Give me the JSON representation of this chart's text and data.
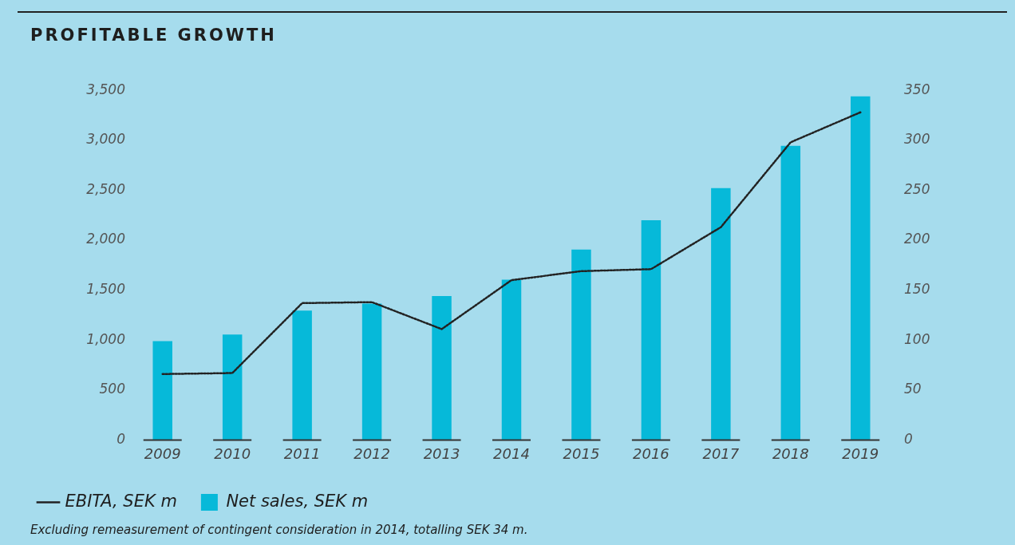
{
  "chart_data": {
    "type": "bar",
    "title": "PROFITABLE GROWTH",
    "categories": [
      "2009",
      "2010",
      "2011",
      "2012",
      "2013",
      "2014",
      "2015",
      "2016",
      "2017",
      "2018",
      "2019"
    ],
    "series": [
      {
        "name": "Net sales, SEK m",
        "color": "#06b9d9",
        "values": [
          990,
          1055,
          1296,
          1366,
          1440,
          1604,
          1906,
          2200,
          2522,
          2944,
          3440
        ]
      },
      {
        "name": "EBITA, SEK m",
        "type": "line",
        "axis": "y2",
        "color": "#222222",
        "line_style": "dotted",
        "marker": "none",
        "values": [
          66,
          67,
          137,
          138,
          111,
          160,
          169,
          171,
          213,
          298,
          328
        ]
      }
    ],
    "ylim": [
      0,
      3500
    ],
    "yticks": [
      {
        "value": 0,
        "label": "0"
      },
      {
        "value": 500,
        "label": "500"
      },
      {
        "value": 1000,
        "label": "1,000"
      },
      {
        "value": 1500,
        "label": "1,500"
      },
      {
        "value": 2000,
        "label": "2,000"
      },
      {
        "value": 2500,
        "label": "2,500"
      },
      {
        "value": 3000,
        "label": "3,000"
      },
      {
        "value": 3500,
        "label": "3,500"
      }
    ],
    "y2lim": [
      0,
      350
    ],
    "y2ticks": [
      0,
      50,
      100,
      150,
      200,
      250,
      300,
      350
    ],
    "grid": false,
    "legend": "bottom left",
    "annotations": [
      "Excluding remeasurement of contingent consideration in 2014, totalling SEK 34 m."
    ]
  }
}
